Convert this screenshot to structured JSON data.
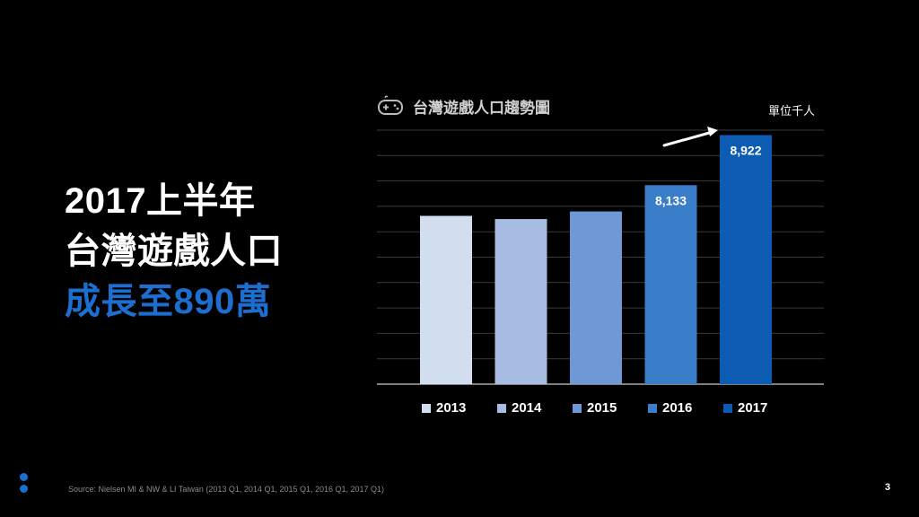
{
  "headline": {
    "line1": "2017上半年",
    "line2": "台灣遊戲人口",
    "line3": "成長至890萬",
    "accent_color": "#1c6fd1"
  },
  "chart_data": {
    "type": "bar",
    "title": "台灣遊戲人口趨勢圖",
    "unit_label": "單位千人",
    "categories": [
      "2013",
      "2014",
      "2015",
      "2016",
      "2017"
    ],
    "values": [
      7650,
      7600,
      7720,
      8133,
      8922
    ],
    "data_labels": [
      "",
      "",
      "",
      "8,133",
      "8,922"
    ],
    "colors": [
      "#d3ddf0",
      "#a7bbe3",
      "#6f99d6",
      "#3a7dc9",
      "#0c5cb4"
    ],
    "ylim": [
      5000,
      9000
    ],
    "grid": true,
    "legend_position": "bottom"
  },
  "footer": {
    "source": "Source: Nielsen MI & NW & LI Taiwan (2013 Q1, 2014 Q1, 2015 Q1, 2016 Q1, 2017 Q1)",
    "page_number": "3"
  },
  "icons": {
    "title_icon": "gamepad-icon",
    "trend_arrow": "arrow-up-right-icon"
  }
}
